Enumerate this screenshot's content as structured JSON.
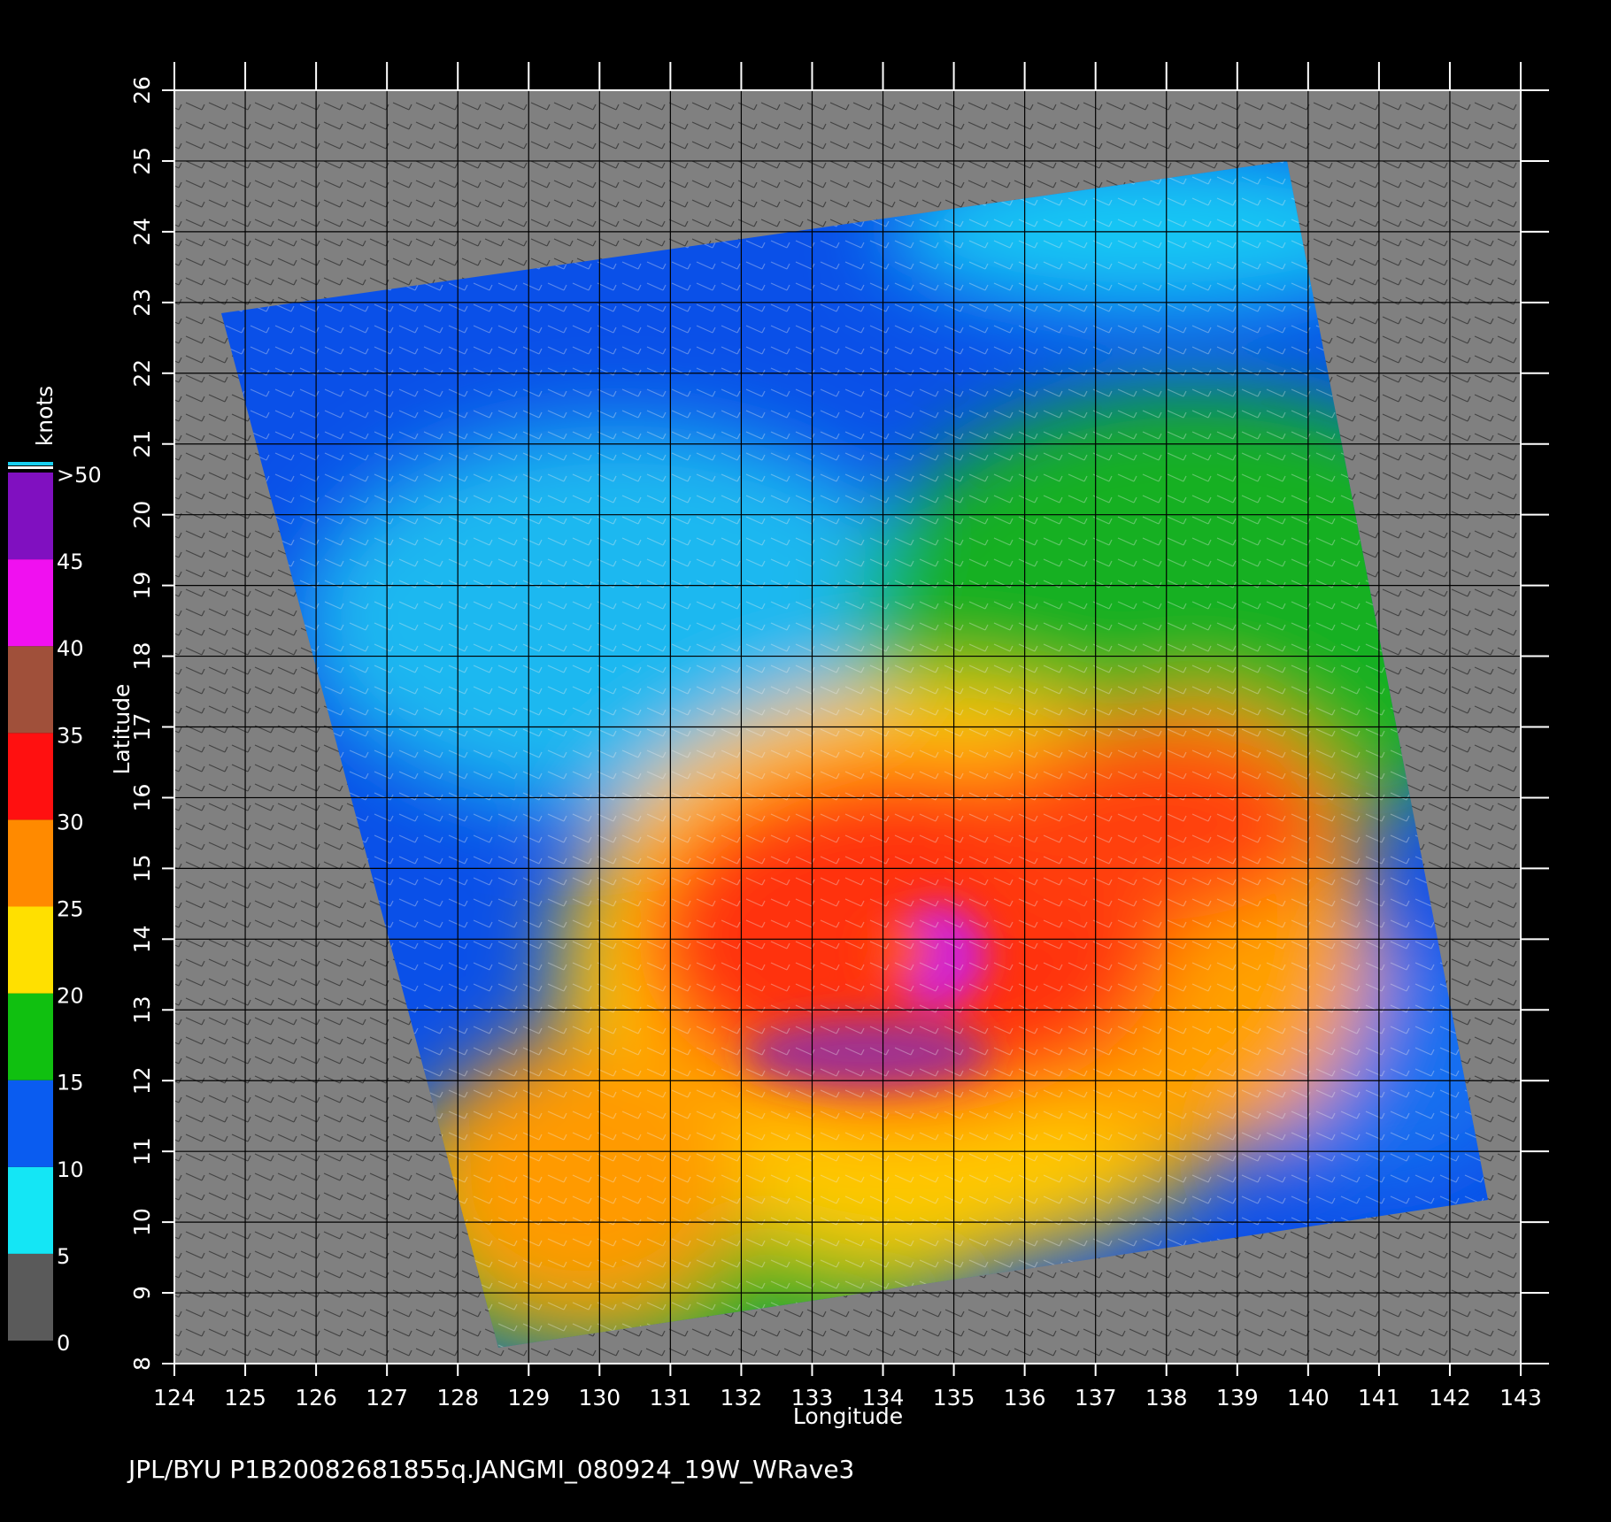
{
  "chart_data": {
    "type": "map",
    "xlabel": "Longitude",
    "ylabel": "Latitude",
    "xlim": [
      124,
      143
    ],
    "ylim": [
      8,
      26
    ],
    "xticks": [
      124,
      125,
      126,
      127,
      128,
      129,
      130,
      131,
      132,
      133,
      134,
      135,
      136,
      137,
      138,
      139,
      140,
      141,
      142,
      143
    ],
    "yticks": [
      8,
      9,
      10,
      11,
      12,
      13,
      14,
      15,
      16,
      17,
      18,
      19,
      20,
      21,
      22,
      23,
      24,
      25,
      26
    ],
    "grid": true,
    "colorbar": {
      "title": "knots",
      "ticks": [
        0,
        5,
        10,
        15,
        20,
        25,
        30,
        35,
        40,
        45,
        {
          "value": 50,
          "label": ">50"
        }
      ],
      "colors": [
        "#5a5a5a",
        "#14e6f5",
        "#0a5cf0",
        "#10c010",
        "#ffe000",
        "#ff8a00",
        "#ff1010",
        "#a0503a",
        "#f010f0",
        "#8010c0"
      ]
    },
    "footer": "JPL/BYU  P1B20082681855q.JANGMI_080924_19W_WRave3"
  }
}
